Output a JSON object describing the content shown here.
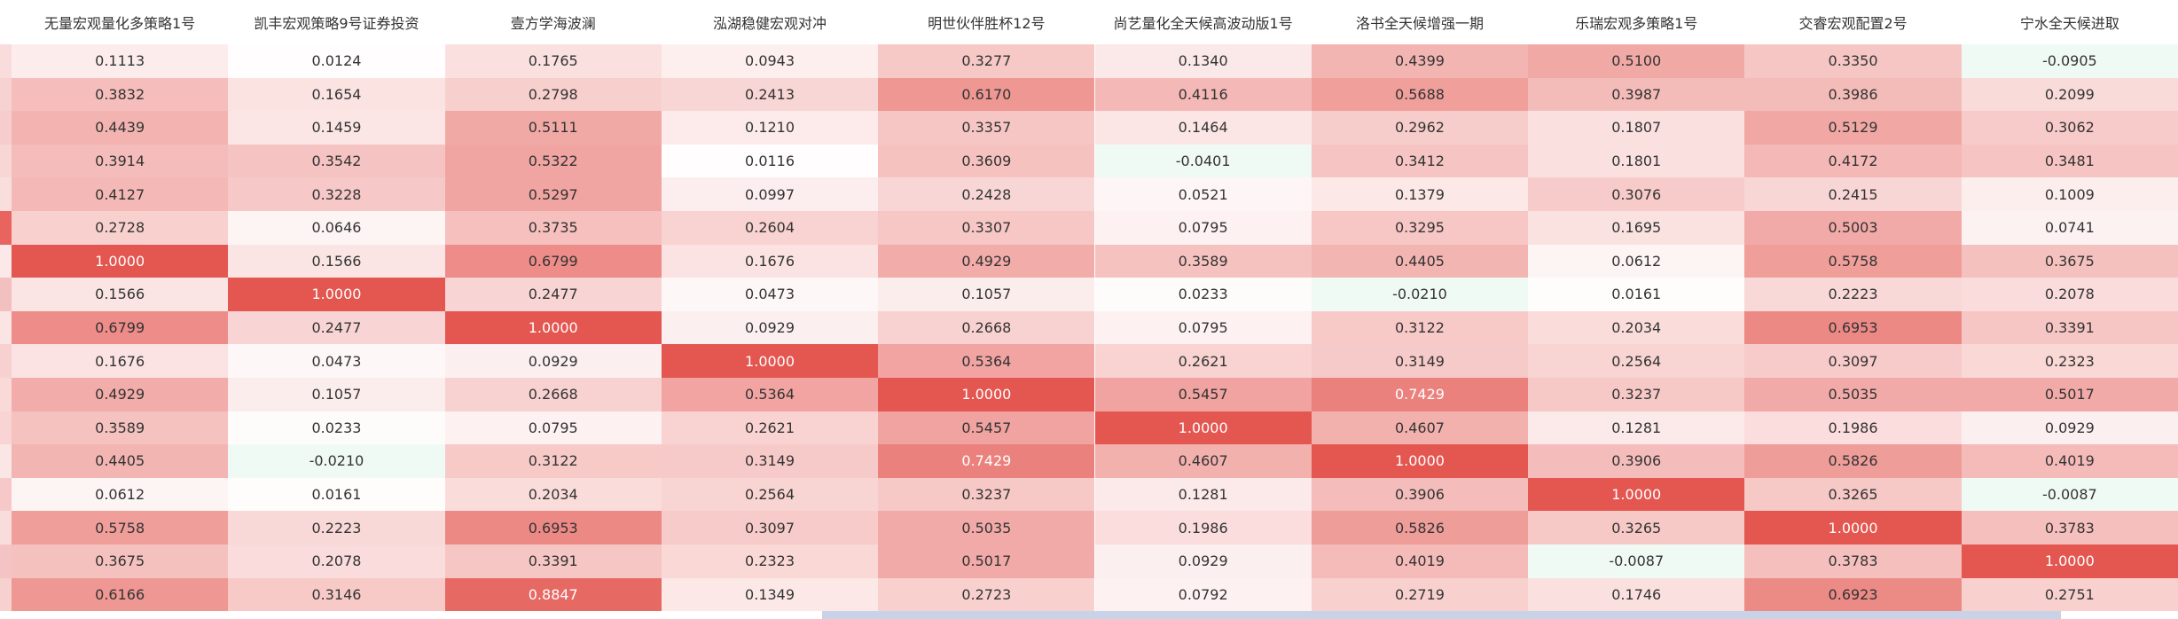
{
  "table": {
    "headers": [
      "无量宏观量化多策略1号",
      "凯丰宏观策略9号证券投资",
      "壹方学海波澜",
      "泓湖稳健宏观对冲",
      "明世伙伴胜杯12号",
      "尚艺量化全天候高波动版1号",
      "洛书全天候增强一期",
      "乐瑞宏观多策略1号",
      "交睿宏观配置2号",
      "宁水全天候进取"
    ],
    "rows": [
      [
        "0.1113",
        "0.0124",
        "0.1765",
        "0.0943",
        "0.3277",
        "0.1340",
        "0.4399",
        "0.5100",
        "0.3350",
        "-0.0905"
      ],
      [
        "0.3832",
        "0.1654",
        "0.2798",
        "0.2413",
        "0.6170",
        "0.4116",
        "0.5688",
        "0.3987",
        "0.3986",
        "0.2099"
      ],
      [
        "0.4439",
        "0.1459",
        "0.5111",
        "0.1210",
        "0.3357",
        "0.1464",
        "0.2962",
        "0.1807",
        "0.5129",
        "0.3062"
      ],
      [
        "0.3914",
        "0.3542",
        "0.5322",
        "0.0116",
        "0.3609",
        "-0.0401",
        "0.3412",
        "0.1801",
        "0.4172",
        "0.3481"
      ],
      [
        "0.4127",
        "0.3228",
        "0.5297",
        "0.0997",
        "0.2428",
        "0.0521",
        "0.1379",
        "0.3076",
        "0.2415",
        "0.1009"
      ],
      [
        "0.2728",
        "0.0646",
        "0.3735",
        "0.2604",
        "0.3307",
        "0.0795",
        "0.3295",
        "0.1695",
        "0.5003",
        "0.0741"
      ],
      [
        "1.0000",
        "0.1566",
        "0.6799",
        "0.1676",
        "0.4929",
        "0.3589",
        "0.4405",
        "0.0612",
        "0.5758",
        "0.3675"
      ],
      [
        "0.1566",
        "1.0000",
        "0.2477",
        "0.0473",
        "0.1057",
        "0.0233",
        "-0.0210",
        "0.0161",
        "0.2223",
        "0.2078"
      ],
      [
        "0.6799",
        "0.2477",
        "1.0000",
        "0.0929",
        "0.2668",
        "0.0795",
        "0.3122",
        "0.2034",
        "0.6953",
        "0.3391"
      ],
      [
        "0.1676",
        "0.0473",
        "0.0929",
        "1.0000",
        "0.5364",
        "0.2621",
        "0.3149",
        "0.2564",
        "0.3097",
        "0.2323"
      ],
      [
        "0.4929",
        "0.1057",
        "0.2668",
        "0.5364",
        "1.0000",
        "0.5457",
        "0.7429",
        "0.3237",
        "0.5035",
        "0.5017"
      ],
      [
        "0.3589",
        "0.0233",
        "0.0795",
        "0.2621",
        "0.5457",
        "1.0000",
        "0.4607",
        "0.1281",
        "0.1986",
        "0.0929"
      ],
      [
        "0.4405",
        "-0.0210",
        "0.3122",
        "0.3149",
        "0.7429",
        "0.4607",
        "1.0000",
        "0.3906",
        "0.5826",
        "0.4019"
      ],
      [
        "0.0612",
        "0.0161",
        "0.2034",
        "0.2564",
        "0.3237",
        "0.1281",
        "0.3906",
        "1.0000",
        "0.3265",
        "-0.0087"
      ],
      [
        "0.5758",
        "0.2223",
        "0.6953",
        "0.3097",
        "0.5035",
        "0.1986",
        "0.5826",
        "0.3265",
        "1.0000",
        "0.3783"
      ],
      [
        "0.3675",
        "0.2078",
        "0.3391",
        "0.2323",
        "0.5017",
        "0.0929",
        "0.4019",
        "-0.0087",
        "0.3783",
        "1.0000"
      ],
      [
        "0.6166",
        "0.3146",
        "0.8847",
        "0.1349",
        "0.2723",
        "0.0792",
        "0.2719",
        "0.1746",
        "0.6923",
        "0.2751"
      ]
    ]
  }
}
